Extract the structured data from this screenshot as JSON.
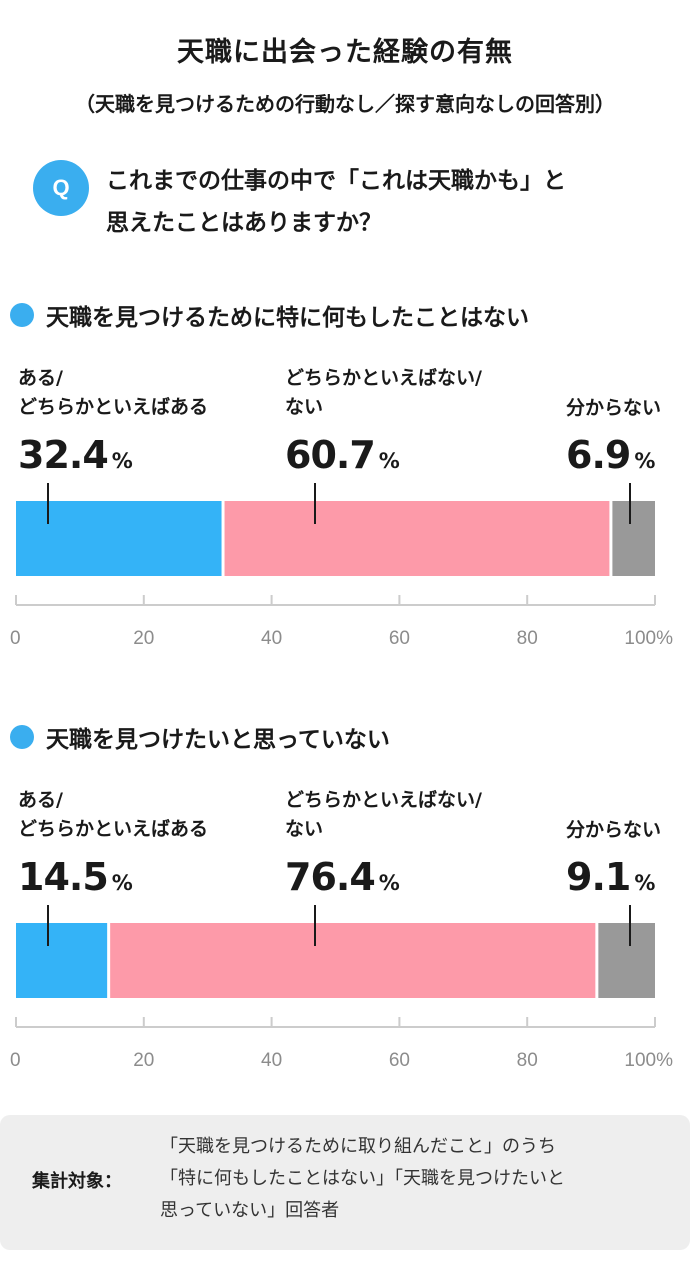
{
  "title": "天職に出会った経験の有無",
  "subtitle": "（天職を見つけるための行動なし／探す意向なしの回答別）",
  "question": {
    "badge": "Q",
    "text": "これまでの仕事の中で「これは天職かも」と\n思えたことはありますか？"
  },
  "colors": {
    "accent": "#3aaeef",
    "yes": "#34b3f7",
    "no": "#fd9aa9",
    "unknown": "#999999",
    "axis": "#cccccc"
  },
  "chart_data": [
    {
      "type": "bar",
      "orientation": "horizontal-stacked",
      "title": "天職を見つけるために特に何もしたことはない",
      "categories": [
        "ある/\nどちらかといえばある",
        "どちらかといえばない/\nない",
        "分からない"
      ],
      "values": [
        32.4,
        60.7,
        6.9
      ],
      "value_display": [
        "32.4",
        "60.7",
        "6.9"
      ],
      "unit": "%",
      "xlim": [
        0,
        100
      ],
      "ticks": [
        "0",
        "20",
        "40",
        "60",
        "80",
        "100%"
      ],
      "grid": false
    },
    {
      "type": "bar",
      "orientation": "horizontal-stacked",
      "title": "天職を見つけたいと思っていない",
      "categories": [
        "ある/\nどちらかといえばある",
        "どちらかといえばない/\nない",
        "分からない"
      ],
      "values": [
        14.5,
        76.4,
        9.1
      ],
      "value_display": [
        "14.5",
        "76.4",
        "9.1"
      ],
      "unit": "%",
      "xlim": [
        0,
        100
      ],
      "ticks": [
        "0",
        "20",
        "40",
        "60",
        "80",
        "100%"
      ],
      "grid": false
    }
  ],
  "footer": {
    "label": "集計対象：",
    "text": "「天職を見つけるために取り組んだこと」のうち\n「特に何もしたことはない」「天職を見つけたいと\n思っていない」回答者"
  }
}
